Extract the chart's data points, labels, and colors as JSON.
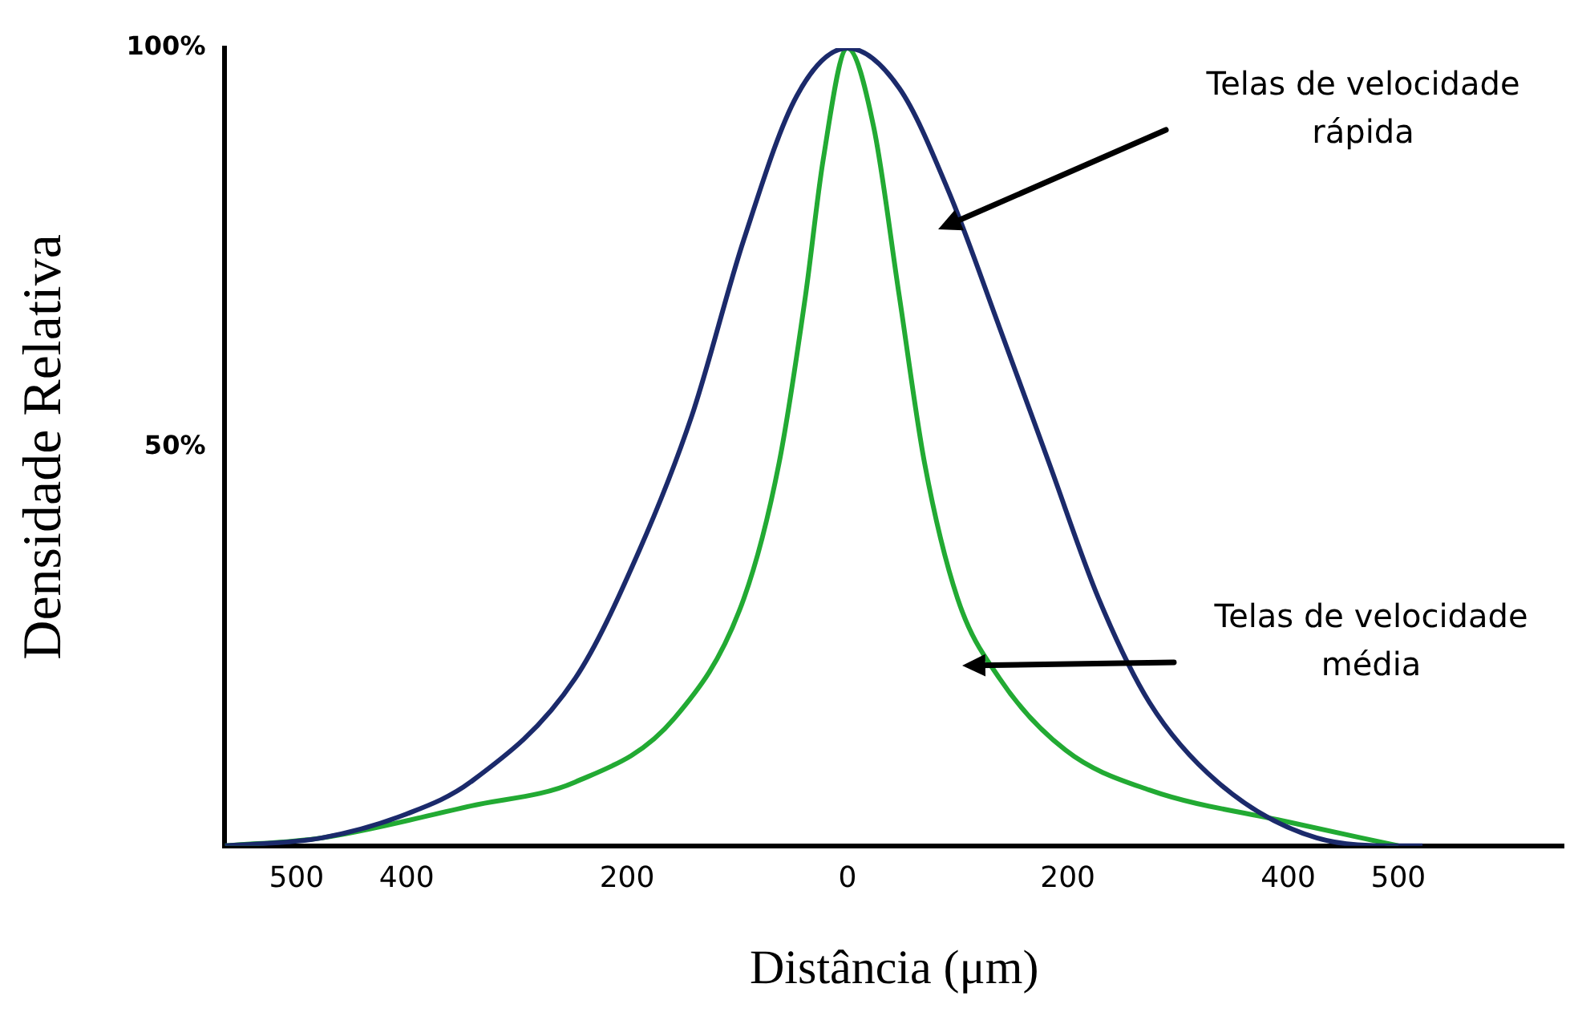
{
  "chart_data": {
    "type": "line",
    "xlabel": "Distância (μm)",
    "ylabel": "Densidade Relativa",
    "xlim": [
      -565,
      650
    ],
    "ylim": [
      0,
      100
    ],
    "xticks": [
      {
        "value": -500,
        "label": "500"
      },
      {
        "value": -400,
        "label": "400"
      },
      {
        "value": -200,
        "label": "200"
      },
      0,
      200,
      400,
      500
    ],
    "yticks": [
      {
        "value": 0,
        "label": null
      },
      {
        "value": 50,
        "label": "50%"
      },
      {
        "value": 100,
        "label": "100%"
      }
    ],
    "grid": false,
    "legend": false,
    "marker": "none",
    "line_style": "solid",
    "series": [
      {
        "color": "#1b2a6b",
        "x": [
          -565,
          -477,
          -400,
          -342,
          -247,
          -189,
          -141,
          -94,
          -46,
          0,
          47,
          92,
          138,
          183,
          228,
          274,
          336,
          426,
          500,
          522
        ],
        "values": [
          0,
          1,
          4,
          8,
          21,
          37,
          54,
          76,
          94,
          100,
          95,
          82,
          65,
          48,
          31,
          18,
          8,
          1,
          0,
          0
        ]
      },
      {
        "color": "#22aa33",
        "x": [
          -565,
          -477,
          -342,
          -247,
          -157,
          -94,
          -62,
          -38,
          -22,
          0,
          24,
          47,
          70,
          100,
          138,
          198,
          274,
          400,
          500
        ],
        "values": [
          0,
          1,
          5,
          8,
          16,
          31,
          48,
          69,
          86,
          100,
          90,
          69,
          48,
          31,
          21,
          12,
          7,
          3,
          0
        ]
      }
    ],
    "annotations": [
      "Telas de velocidade rápida",
      "Telas de velocidade média"
    ]
  }
}
